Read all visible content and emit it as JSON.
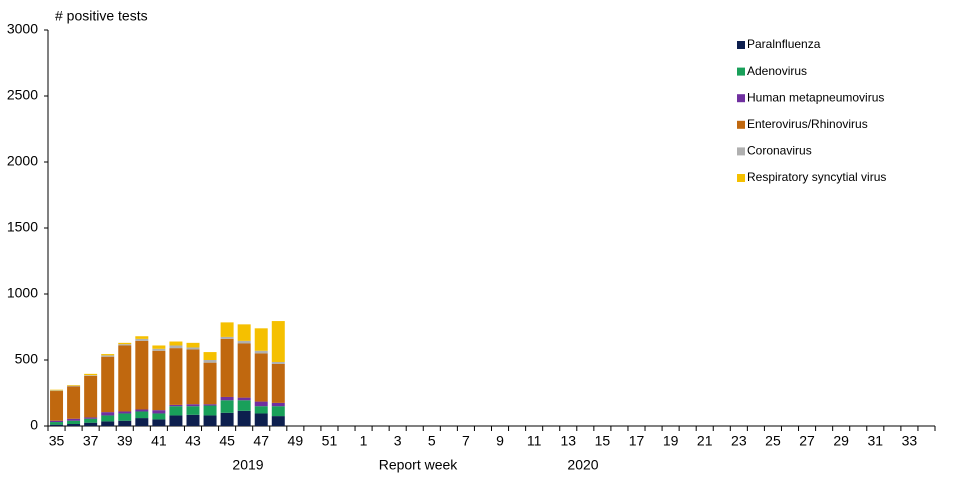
{
  "chart_data": {
    "type": "stacked_bar",
    "y_label": "# positive tests",
    "x_label": "Report  week",
    "annotations": [
      "2019",
      "2020"
    ],
    "categories": [
      "35",
      null,
      "37",
      null,
      "39",
      null,
      "41",
      null,
      "43",
      null,
      "45",
      null,
      "47",
      null,
      "49",
      null,
      "51",
      null,
      "1",
      null,
      "3",
      null,
      "5",
      null,
      "7",
      null,
      "9",
      null,
      "11",
      null,
      "13",
      null,
      "15",
      null,
      "17",
      null,
      "19",
      null,
      "21",
      null,
      "23",
      null,
      "25",
      null,
      "27",
      null,
      "29",
      null,
      "31",
      null,
      "33",
      null
    ],
    "series": [
      {
        "name": "Paralnfluenza",
        "color": "#0d1f4e",
        "values": [
          10,
          15,
          25,
          35,
          40,
          60,
          50,
          80,
          85,
          80,
          100,
          115,
          95,
          75,
          null,
          null,
          null,
          null,
          null,
          null,
          null,
          null,
          null,
          null,
          null,
          null,
          null,
          null,
          null,
          null,
          null,
          null,
          null,
          null,
          null,
          null,
          null,
          null,
          null,
          null,
          null,
          null,
          null,
          null,
          null,
          null,
          null,
          null,
          null,
          null,
          null,
          null
        ]
      },
      {
        "name": "Adenovirus",
        "color": "#19a05a",
        "values": [
          20,
          25,
          30,
          45,
          55,
          50,
          45,
          70,
          65,
          75,
          95,
          80,
          55,
          75,
          null,
          null,
          null,
          null,
          null,
          null,
          null,
          null,
          null,
          null,
          null,
          null,
          null,
          null,
          null,
          null,
          null,
          null,
          null,
          null,
          null,
          null,
          null,
          null,
          null,
          null,
          null,
          null,
          null,
          null,
          null,
          null,
          null,
          null,
          null,
          null,
          null,
          null
        ]
      },
      {
        "name": "Human metapneumovirus",
        "color": "#7030a0",
        "values": [
          10,
          15,
          10,
          25,
          15,
          15,
          25,
          10,
          15,
          10,
          25,
          20,
          35,
          25,
          null,
          null,
          null,
          null,
          null,
          null,
          null,
          null,
          null,
          null,
          null,
          null,
          null,
          null,
          null,
          null,
          null,
          null,
          null,
          null,
          null,
          null,
          null,
          null,
          null,
          null,
          null,
          null,
          null,
          null,
          null,
          null,
          null,
          null,
          null,
          null,
          null,
          null
        ]
      },
      {
        "name": "Enterovirus/Rhinovirus",
        "color": "#c0680f",
        "values": [
          225,
          245,
          315,
          420,
          500,
          520,
          450,
          430,
          415,
          315,
          440,
          410,
          365,
          295,
          null,
          null,
          null,
          null,
          null,
          null,
          null,
          null,
          null,
          null,
          null,
          null,
          null,
          null,
          null,
          null,
          null,
          null,
          null,
          null,
          null,
          null,
          null,
          null,
          null,
          null,
          null,
          null,
          null,
          null,
          null,
          null,
          null,
          null,
          null,
          null,
          null,
          null
        ]
      },
      {
        "name": "Coronavirus",
        "color": "#b0b0b0",
        "values": [
          5,
          5,
          5,
          10,
          10,
          15,
          15,
          20,
          15,
          20,
          15,
          20,
          20,
          15,
          null,
          null,
          null,
          null,
          null,
          null,
          null,
          null,
          null,
          null,
          null,
          null,
          null,
          null,
          null,
          null,
          null,
          null,
          null,
          null,
          null,
          null,
          null,
          null,
          null,
          null,
          null,
          null,
          null,
          null,
          null,
          null,
          null,
          null,
          null,
          null,
          null,
          null
        ]
      },
      {
        "name": "Respiratory syncytial virus",
        "color": "#f5c000",
        "values": [
          5,
          5,
          10,
          10,
          10,
          20,
          25,
          30,
          35,
          60,
          110,
          125,
          170,
          310,
          null,
          null,
          null,
          null,
          null,
          null,
          null,
          null,
          null,
          null,
          null,
          null,
          null,
          null,
          null,
          null,
          null,
          null,
          null,
          null,
          null,
          null,
          null,
          null,
          null,
          null,
          null,
          null,
          null,
          null,
          null,
          null,
          null,
          null,
          null,
          null,
          null,
          null
        ]
      }
    ],
    "ylim": [
      0,
      3000
    ],
    "yticks": [
      0,
      500,
      1000,
      1500,
      2000,
      2500,
      3000
    ],
    "grid": false,
    "legend": "top-right"
  }
}
